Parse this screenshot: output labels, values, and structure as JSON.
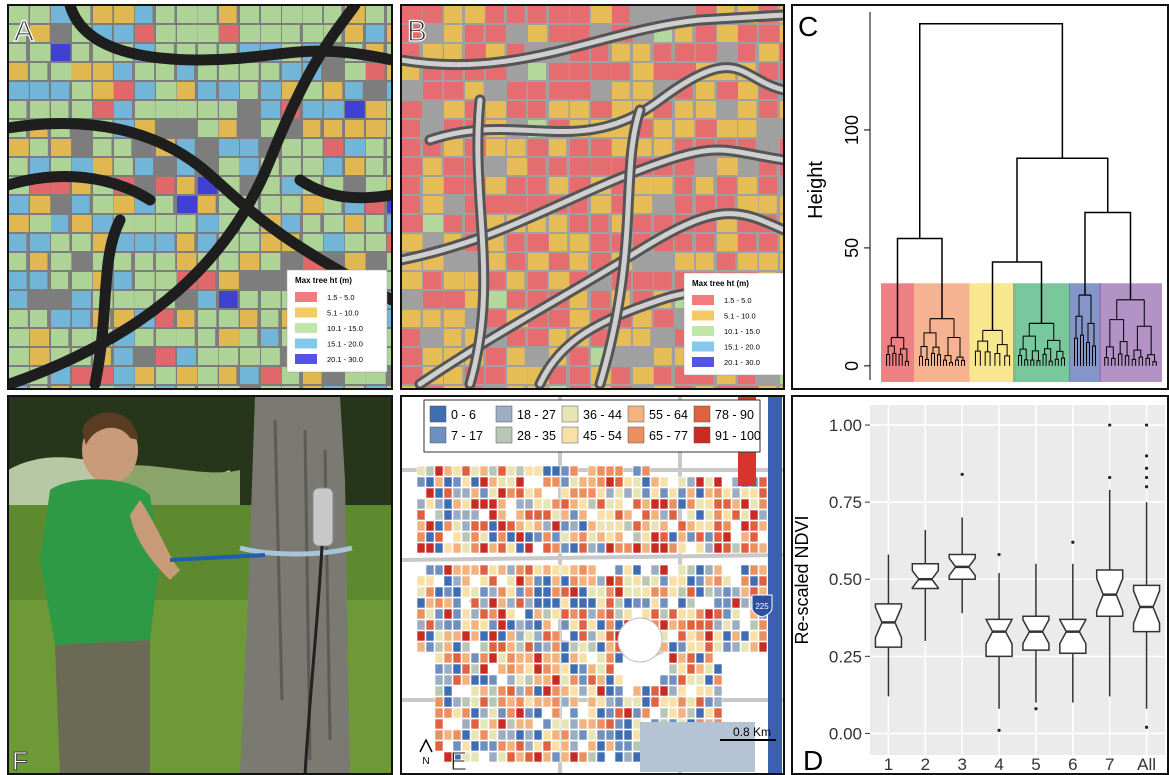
{
  "map_a": {
    "label": "A",
    "legend_title": "Max tree ht (m)",
    "legend": [
      {
        "label": "1.5 - 5.0",
        "color": "#f26466"
      },
      {
        "label": "5.1 - 10.0",
        "color": "#f2c14a"
      },
      {
        "label": "10.1 - 15.0",
        "color": "#b6e29b"
      },
      {
        "label": "15.1 - 20.0",
        "color": "#6ec0e8"
      },
      {
        "label": "20.1 - 30.0",
        "color": "#3535e0"
      }
    ]
  },
  "map_b": {
    "label": "B",
    "legend_title": "Max tree ht (m)",
    "legend": [
      {
        "label": "1.5 - 5.0",
        "color": "#f26466"
      },
      {
        "label": "5.1 - 10.0",
        "color": "#f2c14a"
      },
      {
        "label": "10.1 - 15.0",
        "color": "#b6e29b"
      },
      {
        "label": "15.1 - 20.0",
        "color": "#6ec0e8"
      },
      {
        "label": "20.1 - 30.0",
        "color": "#3535e0"
      }
    ]
  },
  "map_e": {
    "label": "E",
    "legend": [
      {
        "label": "0 - 6",
        "color": "#3e6db4"
      },
      {
        "label": "7 - 17",
        "color": "#6f8fbf"
      },
      {
        "label": "18 - 27",
        "color": "#9aadc2"
      },
      {
        "label": "28 - 35",
        "color": "#b8c7b5"
      },
      {
        "label": "36 - 44",
        "color": "#e8e5b5"
      },
      {
        "label": "45 - 54",
        "color": "#f8e0a6"
      },
      {
        "label": "55 - 64",
        "color": "#f3b37f"
      },
      {
        "label": "65 - 77",
        "color": "#ec8f60"
      },
      {
        "label": "78 - 90",
        "color": "#de6140"
      },
      {
        "label": "91 - 100",
        "color": "#c92b23"
      }
    ],
    "scale": "0.8 Km",
    "highway": "225",
    "north": "N"
  },
  "photo_f": {
    "label": "F"
  },
  "chart_data": [
    {
      "type": "dendrogram",
      "label": "C",
      "y_label": "Height",
      "ylim": [
        -6,
        150
      ],
      "yticks": [
        0,
        50,
        100
      ],
      "values": [
        145,
        54,
        88,
        65,
        44
      ],
      "cut_height": 35,
      "cluster_heights": [
        12,
        20,
        15,
        18,
        30,
        28
      ],
      "colors": [
        "#e8575a",
        "#f39a6c",
        "#f5df6a",
        "#4bb47c",
        "#5b73b5",
        "#9a6db3"
      ]
    },
    {
      "type": "boxplot",
      "label": "D",
      "y_label": "Re-scaled NDVI",
      "ylim": [
        -0.07,
        1.065
      ],
      "yticks": [
        {
          "value": 0,
          "label": "0.00"
        },
        {
          "value": 0.25,
          "label": "0.25"
        },
        {
          "value": 0.5,
          "label": "0.50"
        },
        {
          "value": 0.75,
          "label": "0.75"
        },
        {
          "value": 1,
          "label": "1.00"
        }
      ],
      "categories": [
        "1",
        "2",
        "3",
        "4",
        "5",
        "6",
        "7",
        "All"
      ],
      "min": [
        0.12,
        0.3,
        0.39,
        0.08,
        0.1,
        0.1,
        0.12,
        0.08
      ],
      "q1": [
        0.28,
        0.47,
        0.5,
        0.25,
        0.27,
        0.26,
        0.38,
        0.33
      ],
      "median": [
        0.36,
        0.5,
        0.54,
        0.33,
        0.33,
        0.33,
        0.45,
        0.41
      ],
      "q3": [
        0.42,
        0.55,
        0.58,
        0.37,
        0.38,
        0.37,
        0.53,
        0.48
      ],
      "max": [
        0.58,
        0.66,
        0.7,
        0.52,
        0.55,
        0.55,
        0.79,
        0.75
      ],
      "outliers": [
        [],
        [],
        [
          0.84
        ],
        [
          0.58,
          0.01
        ],
        [
          0.08
        ],
        [
          0.62
        ],
        [
          0.83,
          1
        ],
        [
          0.8,
          0.83,
          0.86,
          0.9,
          1,
          0.02
        ]
      ],
      "grid": true
    }
  ]
}
